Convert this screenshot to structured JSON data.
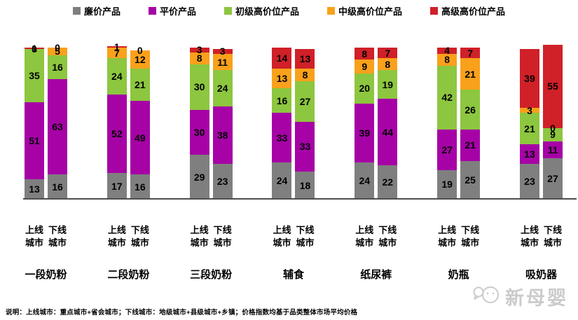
{
  "chart_data": {
    "type": "bar",
    "stacked": true,
    "orientation": "vertical",
    "legend_position": "top",
    "grid": false,
    "ylim": [
      0,
      105
    ],
    "series_names": [
      "廉价产品",
      "平价产品",
      "初级高价位产品",
      "中级高价位产品",
      "高级高价位产品"
    ],
    "series_colors": [
      "#7F7F7F",
      "#A602A6",
      "#8DC63F",
      "#F9A11B",
      "#D02028"
    ],
    "bar_labels": [
      "上线城市",
      "下线城市"
    ],
    "groups": [
      {
        "category": "一段奶粉",
        "bars": [
          [
            13,
            51,
            35,
            0,
            1
          ],
          [
            16,
            63,
            16,
            5,
            0
          ]
        ]
      },
      {
        "category": "二段奶粉",
        "bars": [
          [
            17,
            52,
            24,
            7,
            1
          ],
          [
            16,
            49,
            21,
            12,
            0
          ]
        ]
      },
      {
        "category": "三段奶粉",
        "bars": [
          [
            29,
            30,
            30,
            8,
            3
          ],
          [
            23,
            38,
            24,
            11,
            3
          ]
        ]
      },
      {
        "category": "辅食",
        "bars": [
          [
            24,
            33,
            16,
            13,
            14
          ],
          [
            18,
            33,
            27,
            8,
            13
          ]
        ]
      },
      {
        "category": "纸尿裤",
        "bars": [
          [
            24,
            39,
            20,
            9,
            8
          ],
          [
            22,
            44,
            19,
            8,
            7
          ]
        ]
      },
      {
        "category": "奶瓶",
        "bars": [
          [
            19,
            27,
            42,
            8,
            4
          ],
          [
            25,
            21,
            26,
            21,
            7
          ]
        ]
      },
      {
        "category": "吸奶器",
        "bars": [
          [
            23,
            13,
            21,
            3,
            39
          ],
          [
            27,
            11,
            9,
            0,
            55
          ]
        ]
      }
    ]
  },
  "legend": {
    "items": [
      {
        "label": "廉价产品",
        "color": "#7F7F7F"
      },
      {
        "label": "平价产品",
        "color": "#A602A6"
      },
      {
        "label": "初级高价位产品",
        "color": "#8DC63F"
      },
      {
        "label": "中级高价位产品",
        "color": "#F9A11B"
      },
      {
        "label": "高级高价位产品",
        "color": "#D02028"
      }
    ]
  },
  "footer": {
    "note": "说明：上线城市：重点城市+省会城市；下线城市：地级城市+县级城市+乡镇；价格指数均基于品类整体市场平均价格"
  },
  "watermark": {
    "text": "新母婴"
  }
}
